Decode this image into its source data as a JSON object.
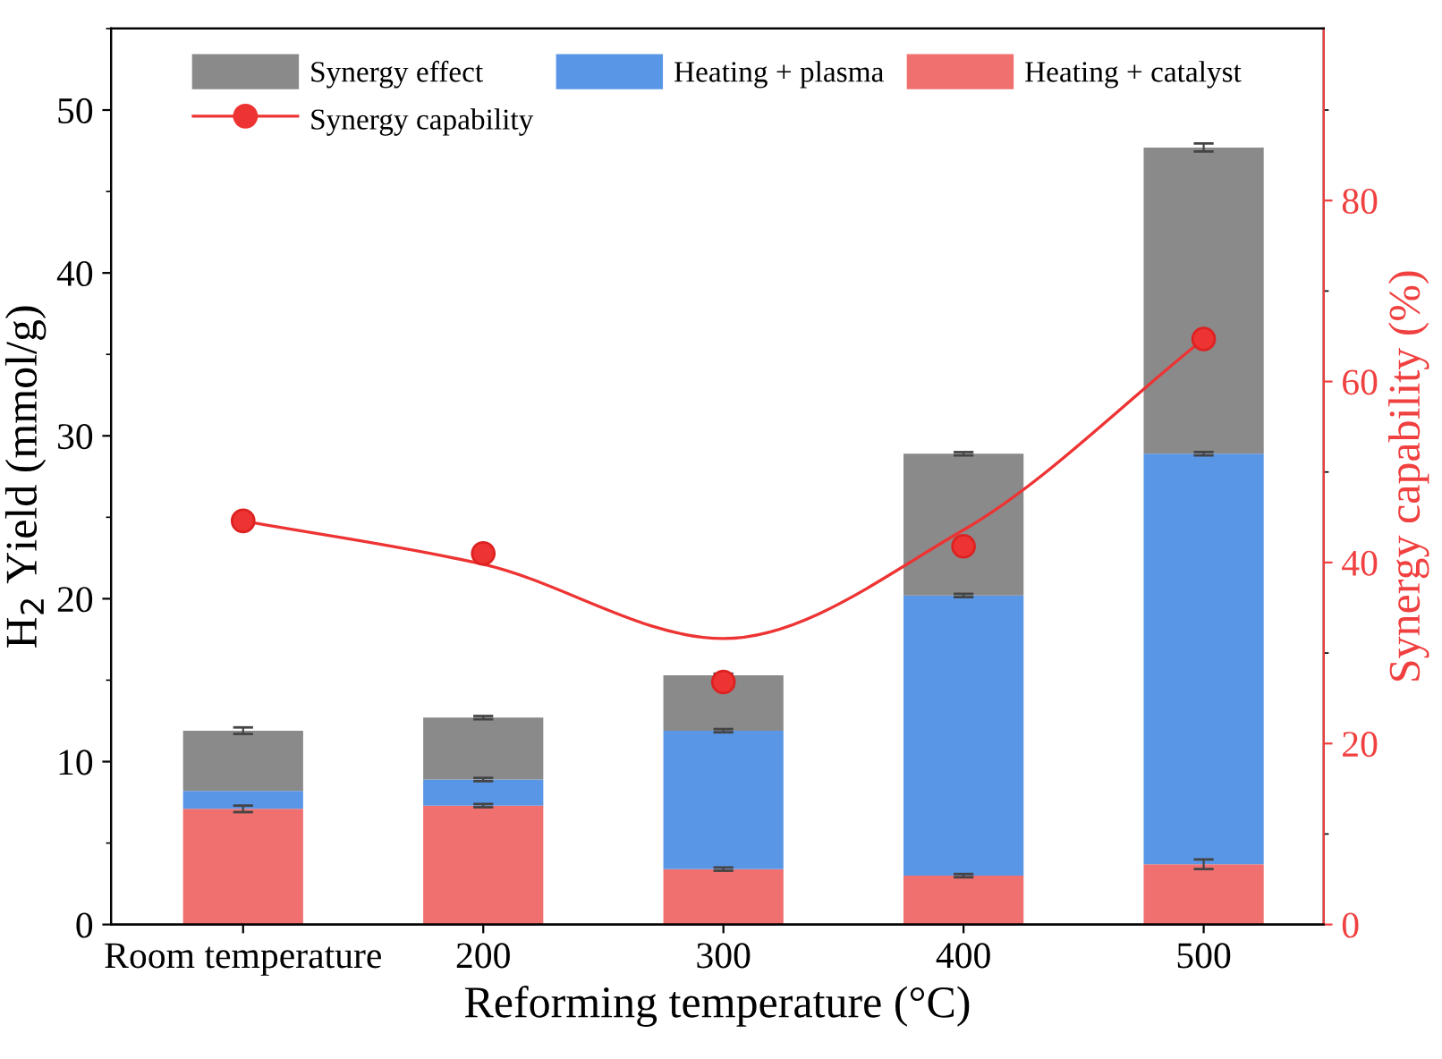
{
  "chart_data": {
    "type": "bar",
    "stacked": true,
    "xlabel": "Reforming temperature (°C)",
    "ylabel": "H$_{2}$ Yield (mmol/g)",
    "y2label": "Synergy capability (%)",
    "categories": [
      "Room temperature",
      "200",
      "300",
      "400",
      "500"
    ],
    "series": [
      {
        "name": "Heating + catalyst",
        "color": "#f07070",
        "values": [
          7.1,
          7.3,
          3.4,
          3.0,
          3.7
        ],
        "errors": [
          0.2,
          0.1,
          0.1,
          0.1,
          0.3
        ]
      },
      {
        "name": "Heating + plasma",
        "color": "#5a96e6",
        "values": [
          1.1,
          1.6,
          8.5,
          17.2,
          25.2
        ],
        "errors": [
          null,
          0.1,
          0.1,
          0.1,
          0.1
        ]
      },
      {
        "name": "Synergy effect",
        "color": "#8a8a8a",
        "values": [
          3.7,
          3.8,
          3.4,
          8.7,
          18.8
        ],
        "errors": [
          0.2,
          0.1,
          0.1,
          0.1,
          0.25
        ]
      },
      {
        "name": "Synergy capability",
        "type": "scatter",
        "axis": "y2",
        "color": "#ee3333",
        "marker": "circle",
        "values": [
          44.6,
          41.0,
          26.8,
          41.8,
          64.7
        ]
      },
      {
        "type": "line",
        "axis": "y2",
        "color": "#ee3333",
        "values": [
          44.6,
          39.8,
          31.6,
          43.6,
          64.7
        ]
      }
    ],
    "ylim": [
      0,
      55
    ],
    "yticks": [
      0,
      10,
      20,
      30,
      40,
      50
    ],
    "y2lim": [
      0,
      99
    ],
    "y2ticks": [
      0,
      20,
      40,
      60,
      80
    ],
    "legend": "top",
    "grid": false
  }
}
